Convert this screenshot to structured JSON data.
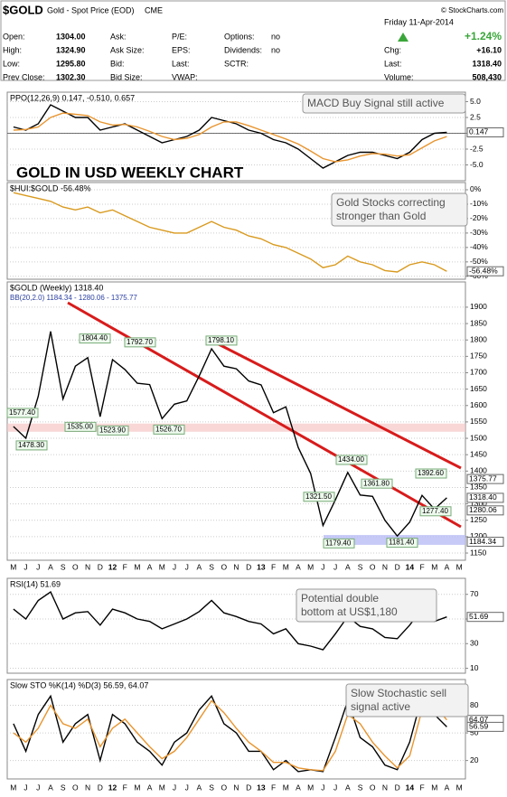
{
  "header": {
    "symbol": "$GOLD",
    "name": "Gold - Spot Price (EOD)",
    "exchange": "CME",
    "copyright": "© StockCharts.com",
    "date": "Friday  11-Apr-2014",
    "change_pct": "+1.24%",
    "columns": [
      [
        {
          "label": "Open:",
          "value": "1304.00"
        },
        {
          "label": "High:",
          "value": "1324.90"
        },
        {
          "label": "Low:",
          "value": "1295.80"
        },
        {
          "label": "Prev Close:",
          "value": "1302.30"
        }
      ],
      [
        {
          "label": "Ask:"
        },
        {
          "label": "Ask Size:"
        },
        {
          "label": "Bid:"
        },
        {
          "label": "Bid Size:"
        }
      ],
      [
        {
          "label": "P/E:"
        },
        {
          "label": "EPS:"
        },
        {
          "label": "Last:"
        },
        {
          "label": "VWAP:"
        }
      ],
      [
        {
          "label": "Options:",
          "value": "no"
        },
        {
          "label": "Dividends:",
          "value": "no"
        },
        {
          "label": "SCTR:"
        }
      ],
      [
        {
          "label": "Chg:",
          "value": "+16.10"
        },
        {
          "label": "Last:",
          "value": "1318.40"
        },
        {
          "label": "Volume:",
          "value": "508,430"
        }
      ]
    ],
    "chart_title": "GOLD IN USD WEEKLY CHART"
  },
  "chart_data": [
    {
      "type": "line",
      "title": "PPO(12,26,9) 0.147, -0.510, 0.657",
      "ylim": [
        -7.5,
        6.5
      ],
      "yticks": [
        {
          "value": 5,
          "label": "5.0"
        },
        {
          "value": 2.5,
          "label": "2.5"
        },
        {
          "value": 0,
          "label": "0.0"
        },
        {
          "value": -2.5,
          "label": "-2.5"
        },
        {
          "value": -5,
          "label": "-5.0"
        }
      ],
      "annotation": [
        "MACD Buy Signal still active"
      ],
      "right_labels": [
        {
          "value": 0.147,
          "label": "0.147"
        }
      ],
      "series": [
        {
          "name": "PPO",
          "color": "#000000",
          "values": [
            1.0,
            0.5,
            1.5,
            4.5,
            3.5,
            2.5,
            2.5,
            0.5,
            1.0,
            1.5,
            0.5,
            -0.5,
            -1.5,
            -1.0,
            -0.5,
            0.5,
            2.5,
            2.0,
            1.5,
            0.5,
            0,
            -1.0,
            -1.5,
            -2.5,
            -4.0,
            -5.5,
            -4.5,
            -3.5,
            -3.0,
            -3.0,
            -3.5,
            -4.0,
            -3.0,
            -1.0,
            0,
            0.147,
            null
          ]
        },
        {
          "name": "Signal",
          "color": "#e8952f",
          "values": [
            0.5,
            0.6,
            1.0,
            2.5,
            3.2,
            3.0,
            2.8,
            1.8,
            1.3,
            1.4,
            1.0,
            0.3,
            -0.5,
            -1.0,
            -0.8,
            -0.2,
            1.0,
            1.8,
            1.8,
            1.2,
            0.5,
            -0.2,
            -0.9,
            -1.7,
            -2.8,
            -4.0,
            -4.5,
            -4.2,
            -3.6,
            -3.2,
            -3.3,
            -3.6,
            -3.4,
            -2.3,
            -1.2,
            -0.51,
            null
          ]
        }
      ]
    },
    {
      "type": "line",
      "title": "$HUI:$GOLD -56.48%",
      "ylim": [
        -62,
        5
      ],
      "yticks": [
        {
          "value": 0,
          "label": "0%"
        },
        {
          "value": -10,
          "label": "-10%"
        },
        {
          "value": -20,
          "label": "-20%"
        },
        {
          "value": -30,
          "label": "-30%"
        },
        {
          "value": -40,
          "label": "-40%"
        },
        {
          "value": -50,
          "label": "-50%"
        },
        {
          "value": -60,
          "label": "-60%"
        }
      ],
      "annotation": [
        "Gold Stocks correcting",
        "stronger than Gold"
      ],
      "right_labels": [
        {
          "value": -56.48,
          "label": "-56.48%"
        }
      ],
      "series": [
        {
          "name": "$HUI:$GOLD",
          "color": "#d99a1e",
          "values": [
            -2,
            -4,
            -6,
            -8,
            -12,
            -14,
            -12,
            -16,
            -14,
            -18,
            -22,
            -26,
            -28,
            -30,
            -30,
            -26,
            -22,
            -26,
            -28,
            -32,
            -34,
            -38,
            -40,
            -44,
            -48,
            -54,
            -52,
            -46,
            -50,
            -52,
            -56,
            -57,
            -52,
            -50,
            -52,
            -56.48,
            null
          ]
        }
      ]
    },
    {
      "type": "line",
      "title": "$GOLD (Weekly) 1318.40",
      "subtitle": "BB(20,2.0) 1184.34 - 1280.06 - 1375.77",
      "categories": [
        "M",
        "J",
        "J",
        "A",
        "S",
        "O",
        "N",
        "D",
        "12",
        "F",
        "M",
        "A",
        "M",
        "J",
        "J",
        "A",
        "S",
        "O",
        "N",
        "D",
        "13",
        "F",
        "M",
        "A",
        "M",
        "J",
        "J",
        "A",
        "S",
        "O",
        "N",
        "D",
        "14",
        "F",
        "M",
        "A",
        "M"
      ],
      "ylim": [
        1128,
        1977
      ],
      "yticks": [
        1150,
        1200,
        1250,
        1300,
        1350,
        1400,
        1450,
        1500,
        1550,
        1600,
        1650,
        1700,
        1750,
        1800,
        1850,
        1900
      ],
      "price_labels": [
        {
          "value": 1577.4,
          "label": "1577.40"
        },
        {
          "value": 1478.3,
          "label": "1478.30"
        },
        {
          "value": 1804.4,
          "label": "1804.40"
        },
        {
          "value": 1535,
          "label": "1535.00"
        },
        {
          "value": 1523.9,
          "label": "1523.90"
        },
        {
          "value": 1792.7,
          "label": "1792.70"
        },
        {
          "value": 1526.7,
          "label": "1526.70"
        },
        {
          "value": 1798.1,
          "label": "1798.10"
        },
        {
          "value": 1434,
          "label": "1434.00"
        },
        {
          "value": 1361.8,
          "label": "1361.80"
        },
        {
          "value": 1392.6,
          "label": "1392.60"
        },
        {
          "value": 1321.5,
          "label": "1321.50"
        },
        {
          "value": 1277.4,
          "label": "1277.40"
        },
        {
          "value": 1179.4,
          "label": "1179.40"
        },
        {
          "value": 1181.4,
          "label": "1181.40"
        }
      ],
      "right_labels": [
        {
          "value": 1375.77,
          "label": "1375.77"
        },
        {
          "value": 1318.4,
          "label": "1318.40"
        },
        {
          "value": 1280.06,
          "label": "1280.06"
        },
        {
          "value": 1184.34,
          "label": "1184.34"
        }
      ],
      "series": [
        {
          "name": "$GOLD",
          "color": "#000000",
          "values": [
            1536,
            1500,
            1628,
            1826,
            1620,
            1720,
            1746,
            1566,
            1740,
            1710,
            1668,
            1664,
            1560,
            1604,
            1614,
            1690,
            1773,
            1720,
            1712,
            1675,
            1663,
            1578,
            1596,
            1472,
            1393,
            1234,
            1312,
            1396,
            1327,
            1323,
            1250,
            1202,
            1244,
            1326,
            1284,
            1318.4,
            null
          ]
        }
      ]
    },
    {
      "type": "line",
      "title": "RSI(14) 51.69",
      "ylim": [
        6,
        83
      ],
      "yticks": [
        70,
        50,
        30,
        10
      ],
      "annotation": [
        "Potential double",
        "bottom at US$1,180"
      ],
      "right_labels": [
        {
          "value": 51.69,
          "label": "51.69"
        }
      ],
      "series": [
        {
          "name": "RSI",
          "color": "#000000",
          "values": [
            58,
            50,
            65,
            72,
            50,
            55,
            56,
            45,
            58,
            55,
            50,
            48,
            42,
            46,
            50,
            56,
            65,
            55,
            52,
            48,
            46,
            38,
            42,
            30,
            28,
            25,
            38,
            52,
            44,
            42,
            35,
            34,
            45,
            58,
            48,
            51.69,
            null
          ]
        }
      ]
    },
    {
      "type": "line",
      "title": "Slow STO %K(14) %D(3) 56.59, 64.07",
      "ylim": [
        0,
        108
      ],
      "yticks": [
        80,
        50,
        20
      ],
      "annotation": [
        "Slow Stochastic sell",
        "signal active"
      ],
      "right_labels": [
        {
          "value": 64.07,
          "label": "64.07"
        },
        {
          "value": 56.59,
          "label": "56.59"
        }
      ],
      "series": [
        {
          "name": "%K",
          "color": "#000000",
          "values": [
            60,
            30,
            70,
            90,
            40,
            60,
            70,
            20,
            70,
            60,
            40,
            30,
            15,
            40,
            50,
            75,
            90,
            60,
            50,
            30,
            30,
            10,
            20,
            8,
            10,
            8,
            45,
            85,
            45,
            35,
            15,
            10,
            40,
            90,
            70,
            56.59,
            null
          ]
        },
        {
          "name": "%D",
          "color": "#e8952f",
          "values": [
            50,
            40,
            55,
            80,
            60,
            55,
            65,
            35,
            55,
            65,
            50,
            35,
            22,
            30,
            45,
            65,
            85,
            72,
            55,
            40,
            30,
            18,
            18,
            12,
            10,
            9,
            30,
            70,
            60,
            40,
            25,
            12,
            25,
            75,
            80,
            64.07,
            null
          ]
        }
      ]
    }
  ]
}
